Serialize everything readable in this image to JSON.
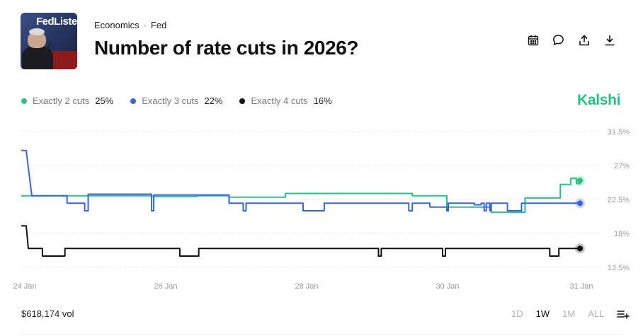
{
  "header": {
    "breadcrumbs": [
      "Economics",
      "Fed"
    ],
    "title": "Number of rate cuts in 2026?",
    "thumbnail_sign_text": "FedListen",
    "actions": [
      {
        "name": "calendar-icon"
      },
      {
        "name": "comment-icon"
      },
      {
        "name": "share-icon"
      },
      {
        "name": "download-icon"
      }
    ]
  },
  "brand": "Kalshi",
  "legend": [
    {
      "label": "Exactly 2 cuts",
      "value": "25%",
      "color": "#28c285"
    },
    {
      "label": "Exactly 3 cuts",
      "value": "22%",
      "color": "#3b63e0"
    },
    {
      "label": "Exactly 4 cuts",
      "value": "16%",
      "color": "#111111"
    }
  ],
  "footer": {
    "volume": "$618,174 vol",
    "ranges": [
      {
        "label": "1D",
        "active": false
      },
      {
        "label": "1W",
        "active": true
      },
      {
        "label": "1M",
        "active": false
      },
      {
        "label": "ALL",
        "active": false
      }
    ]
  },
  "chart_data": {
    "type": "line",
    "x_tick_labels": [
      "24 Jan",
      "26 Jan",
      "28 Jan",
      "30 Jan",
      "31 Jan"
    ],
    "x_ticks_at_day": [
      24.0,
      26.0,
      28.0,
      30.0,
      31.9
    ],
    "x_range": [
      23.95,
      31.95
    ],
    "y_tick_labels": [
      "31.5%",
      "27%",
      "22.5%",
      "18%",
      "13.5%"
    ],
    "y_ticks": [
      31.5,
      27,
      22.5,
      18,
      13.5
    ],
    "ylim": [
      13.5,
      31.5
    ],
    "grid": "horizontal dotted",
    "legend_position": "top-left",
    "series": [
      {
        "name": "Exactly 2 cuts",
        "color": "#28c285",
        "current": 25,
        "points": [
          [
            23.95,
            23
          ],
          [
            25.8,
            23
          ],
          [
            25.8,
            22.9
          ],
          [
            26.45,
            22.9
          ],
          [
            26.45,
            23
          ],
          [
            26.9,
            23
          ],
          [
            26.9,
            22.8
          ],
          [
            27.7,
            22.8
          ],
          [
            27.7,
            23.3
          ],
          [
            29.5,
            23.3
          ],
          [
            29.5,
            23
          ],
          [
            29.99,
            23
          ],
          [
            29.99,
            21.5
          ],
          [
            30.6,
            21.5
          ],
          [
            30.6,
            21.4
          ],
          [
            30.62,
            21.4
          ],
          [
            30.62,
            20.8
          ],
          [
            31.1,
            20.8
          ],
          [
            31.1,
            22.7
          ],
          [
            31.6,
            22.7
          ],
          [
            31.6,
            24.5
          ],
          [
            31.75,
            24.5
          ],
          [
            31.75,
            25.3
          ],
          [
            31.83,
            25.3
          ],
          [
            31.83,
            24.6
          ],
          [
            31.88,
            24.6
          ],
          [
            31.88,
            25
          ]
        ]
      },
      {
        "name": "Exactly 3 cuts",
        "color": "#3b63e0",
        "current": 22,
        "points": [
          [
            23.95,
            29
          ],
          [
            24.02,
            29
          ],
          [
            24.1,
            23
          ],
          [
            24.6,
            23
          ],
          [
            24.6,
            22
          ],
          [
            24.85,
            22
          ],
          [
            24.85,
            21
          ],
          [
            24.9,
            21
          ],
          [
            24.9,
            23.2
          ],
          [
            25.8,
            23.2
          ],
          [
            25.8,
            21
          ],
          [
            25.83,
            21
          ],
          [
            25.83,
            23.1
          ],
          [
            26.9,
            23.1
          ],
          [
            26.9,
            22
          ],
          [
            27.1,
            22
          ],
          [
            27.1,
            21
          ],
          [
            27.14,
            21
          ],
          [
            27.14,
            22
          ],
          [
            27.95,
            22
          ],
          [
            27.95,
            21
          ],
          [
            28.25,
            21
          ],
          [
            28.25,
            22
          ],
          [
            29.45,
            22
          ],
          [
            29.45,
            21
          ],
          [
            29.5,
            21
          ],
          [
            29.5,
            22
          ],
          [
            29.75,
            22
          ],
          [
            29.75,
            21.5
          ],
          [
            29.99,
            21.5
          ],
          [
            29.99,
            21
          ],
          [
            30.01,
            21
          ],
          [
            30.01,
            22
          ],
          [
            30.38,
            22
          ],
          [
            30.38,
            21.8
          ],
          [
            30.48,
            21.8
          ],
          [
            30.48,
            22
          ],
          [
            30.52,
            22
          ],
          [
            30.52,
            21
          ],
          [
            30.55,
            21
          ],
          [
            30.55,
            22
          ],
          [
            30.6,
            22
          ],
          [
            30.6,
            21
          ],
          [
            30.62,
            21
          ],
          [
            30.62,
            22
          ],
          [
            30.85,
            22
          ],
          [
            30.85,
            21
          ],
          [
            31.05,
            21
          ],
          [
            31.05,
            22
          ],
          [
            31.88,
            22
          ]
        ]
      },
      {
        "name": "Exactly 4 cuts",
        "color": "#111111",
        "current": 16,
        "points": [
          [
            23.95,
            19
          ],
          [
            24.02,
            19
          ],
          [
            24.05,
            16
          ],
          [
            24.25,
            16
          ],
          [
            24.25,
            15
          ],
          [
            24.57,
            15
          ],
          [
            24.57,
            16
          ],
          [
            26.2,
            16
          ],
          [
            26.2,
            15
          ],
          [
            26.47,
            15
          ],
          [
            26.47,
            16
          ],
          [
            29.02,
            16
          ],
          [
            29.02,
            15
          ],
          [
            29.06,
            15
          ],
          [
            29.06,
            16
          ],
          [
            29.93,
            16
          ],
          [
            29.93,
            15
          ],
          [
            29.97,
            15
          ],
          [
            29.97,
            16
          ],
          [
            31.45,
            16
          ],
          [
            31.45,
            15
          ],
          [
            31.58,
            15
          ],
          [
            31.58,
            16
          ],
          [
            31.88,
            16
          ]
        ]
      }
    ]
  }
}
